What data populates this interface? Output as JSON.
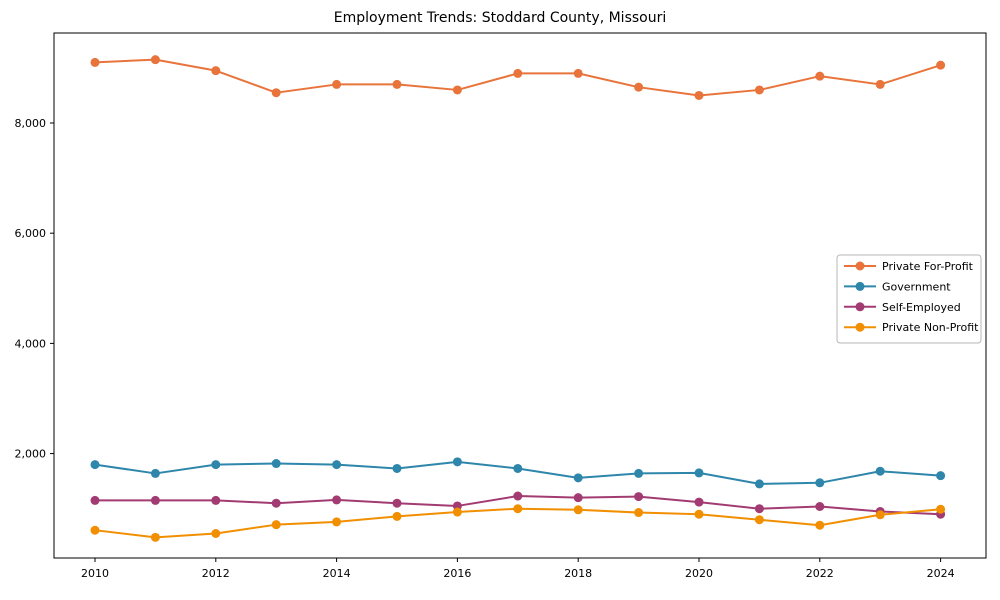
{
  "chart_data": {
    "type": "line",
    "title": "Employment Trends: Stoddard County, Missouri",
    "x": [
      2010,
      2011,
      2012,
      2013,
      2014,
      2015,
      2016,
      2017,
      2018,
      2019,
      2020,
      2021,
      2022,
      2023,
      2024
    ],
    "series": [
      {
        "name": "Private For-Profit",
        "color": "#E8743B",
        "values": [
          9100,
          9150,
          8950,
          8550,
          8700,
          8700,
          8600,
          8900,
          8900,
          8650,
          8500,
          8600,
          8850,
          8700,
          9050
        ]
      },
      {
        "name": "Government",
        "color": "#2E86AB",
        "values": [
          1800,
          1640,
          1800,
          1820,
          1800,
          1730,
          1850,
          1730,
          1560,
          1640,
          1650,
          1450,
          1470,
          1680,
          1600
        ]
      },
      {
        "name": "Self-Employed",
        "color": "#A23B72",
        "values": [
          1150,
          1150,
          1150,
          1100,
          1160,
          1100,
          1050,
          1230,
          1200,
          1220,
          1120,
          1000,
          1040,
          950,
          900
        ]
      },
      {
        "name": "Private Non-Profit",
        "color": "#F18F01",
        "values": [
          610,
          480,
          550,
          710,
          760,
          860,
          940,
          1000,
          980,
          930,
          900,
          800,
          700,
          890,
          990
        ]
      }
    ],
    "xticks": [
      "2010",
      "2012",
      "2014",
      "2016",
      "2018",
      "2020",
      "2022",
      "2024"
    ],
    "xtick_values": [
      2010,
      2012,
      2014,
      2016,
      2018,
      2020,
      2022,
      2024
    ],
    "ytick_labels": [
      "2,000",
      "4,000",
      "6,000",
      "8,000"
    ],
    "ytick_values": [
      2000,
      4000,
      6000,
      8000
    ],
    "xlabel": "",
    "ylabel": "",
    "ylim": [
      100,
      9630
    ],
    "grid": false,
    "legend_position": "center-right",
    "spine_color": "#000000",
    "tick_label_color": "#000000",
    "legend_border_color": "#b7b7b7"
  }
}
